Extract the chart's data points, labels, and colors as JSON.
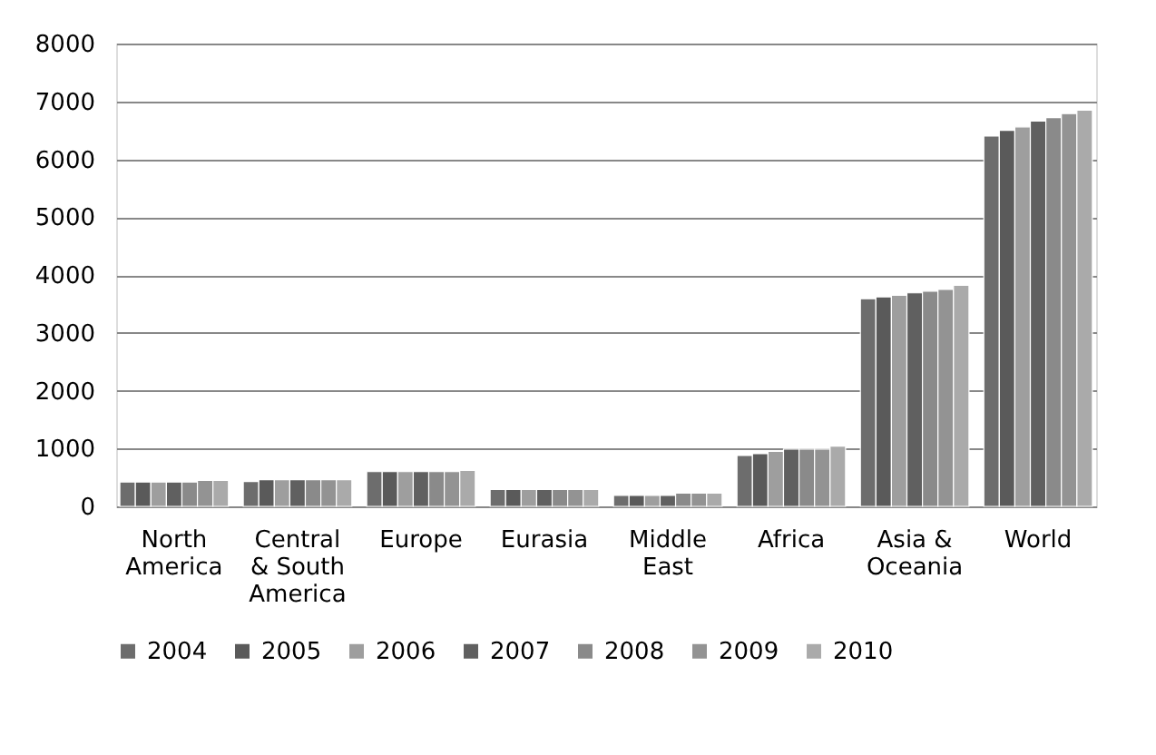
{
  "chart_data": {
    "type": "bar",
    "categories": [
      "North\nAmerica",
      "Central\n& South\nAmerica",
      "Europe",
      "Eurasia",
      "Middle\nEast",
      "Africa",
      "Asia &\nOceania",
      "World"
    ],
    "series": [
      {
        "name": "2004",
        "color": "#6d6d6d",
        "values": [
          420,
          430,
          600,
          290,
          190,
          880,
          3590,
          6400
        ]
      },
      {
        "name": "2005",
        "color": "#5a5a5a",
        "values": [
          420,
          460,
          600,
          290,
          190,
          910,
          3620,
          6500
        ]
      },
      {
        "name": "2006",
        "color": "#9e9e9e",
        "values": [
          420,
          460,
          600,
          290,
          190,
          950,
          3650,
          6560
        ]
      },
      {
        "name": "2007",
        "color": "#606060",
        "values": [
          420,
          460,
          600,
          290,
          190,
          990,
          3690,
          6660
        ]
      },
      {
        "name": "2008",
        "color": "#8a8a8a",
        "values": [
          420,
          460,
          600,
          290,
          230,
          990,
          3720,
          6720
        ]
      },
      {
        "name": "2009",
        "color": "#939393",
        "values": [
          450,
          460,
          600,
          290,
          230,
          990,
          3750,
          6790
        ]
      },
      {
        "name": "2010",
        "color": "#aaaaaa",
        "values": [
          450,
          460,
          620,
          290,
          230,
          1040,
          3820,
          6850
        ]
      }
    ],
    "ylim": [
      0,
      8000
    ],
    "yticks": [
      0,
      1000,
      2000,
      3000,
      4000,
      5000,
      6000,
      7000,
      8000
    ],
    "grid": "y",
    "legend": "bottom"
  }
}
